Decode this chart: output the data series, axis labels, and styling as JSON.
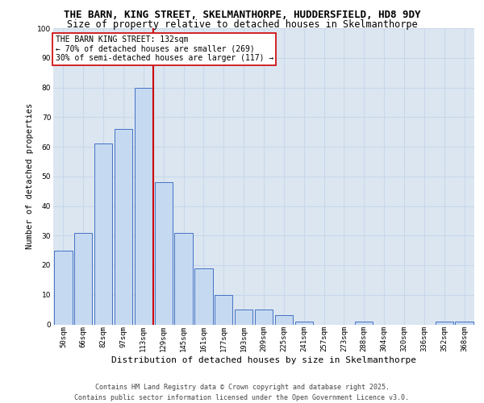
{
  "title1": "THE BARN, KING STREET, SKELMANTHORPE, HUDDERSFIELD, HD8 9DY",
  "title2": "Size of property relative to detached houses in Skelmanthorpe",
  "xlabel": "Distribution of detached houses by size in Skelmanthorpe",
  "ylabel": "Number of detached properties",
  "categories": [
    "50sqm",
    "66sqm",
    "82sqm",
    "97sqm",
    "113sqm",
    "129sqm",
    "145sqm",
    "161sqm",
    "177sqm",
    "193sqm",
    "209sqm",
    "225sqm",
    "241sqm",
    "257sqm",
    "273sqm",
    "288sqm",
    "304sqm",
    "320sqm",
    "336sqm",
    "352sqm",
    "368sqm"
  ],
  "values": [
    25,
    31,
    61,
    66,
    80,
    48,
    31,
    19,
    10,
    5,
    5,
    3,
    1,
    0,
    0,
    1,
    0,
    0,
    0,
    1,
    1
  ],
  "bar_color": "#c5d9f1",
  "bar_edge_color": "#4472c4",
  "vline_color": "#cc0000",
  "vline_index": 5,
  "annotation_line1": "THE BARN KING STREET: 132sqm",
  "annotation_line2": "← 70% of detached houses are smaller (269)",
  "annotation_line3": "30% of semi-detached houses are larger (117) →",
  "annotation_box_color": "#ffffff",
  "annotation_box_edge": "#cc0000",
  "ylim": [
    0,
    100
  ],
  "yticks": [
    0,
    10,
    20,
    30,
    40,
    50,
    60,
    70,
    80,
    90,
    100
  ],
  "grid_color": "#c8d8ea",
  "bg_color": "#dce6f1",
  "footer1": "Contains HM Land Registry data © Crown copyright and database right 2025.",
  "footer2": "Contains public sector information licensed under the Open Government Licence v3.0.",
  "title_fontsize": 9,
  "subtitle_fontsize": 8.5,
  "tick_fontsize": 6.5,
  "ylabel_fontsize": 7.5,
  "xlabel_fontsize": 8,
  "annotation_fontsize": 7,
  "footer_fontsize": 6
}
